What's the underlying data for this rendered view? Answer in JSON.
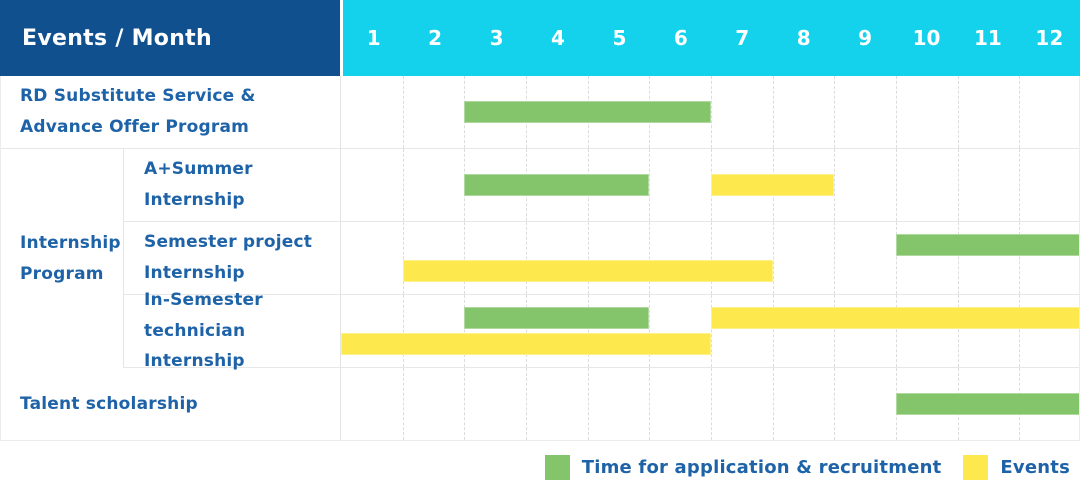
{
  "header": {
    "title": "Events / Month",
    "months": [
      "1",
      "2",
      "3",
      "4",
      "5",
      "6",
      "7",
      "8",
      "9",
      "10",
      "11",
      "12"
    ]
  },
  "colors": {
    "header_bg": "#11508f",
    "month_strip_bg": "#14d2ec",
    "recruitment_bar": "#84c56b",
    "event_bar": "#fde84e",
    "label_text": "#1e63a7"
  },
  "chart_data": {
    "type": "gantt",
    "title": "Events / Month",
    "x_axis": {
      "label": "Month",
      "ticks": [
        "1",
        "2",
        "3",
        "4",
        "5",
        "6",
        "7",
        "8",
        "9",
        "10",
        "11",
        "12"
      ],
      "range": [
        1,
        12
      ]
    },
    "grid": "vertical-dashed",
    "legend_position": "bottom-right",
    "series_legend": [
      {
        "name": "Time for application & recruitment",
        "color": "#84c56b"
      },
      {
        "name": "Events",
        "color": "#fde84e"
      }
    ],
    "rows": [
      {
        "group": null,
        "label": "RD Substitute Service &\nAdvance Offer Program",
        "bars": [
          {
            "series": "Time for application & recruitment",
            "type": "recruitment",
            "start_month": 3,
            "end_month": 6,
            "line": 0
          }
        ]
      },
      {
        "group": "Internship Program",
        "label": "A+Summer\nInternship",
        "bars": [
          {
            "series": "Time for application & recruitment",
            "type": "recruitment",
            "start_month": 3,
            "end_month": 5,
            "line": 0
          },
          {
            "series": "Events",
            "type": "event",
            "start_month": 7,
            "end_month": 8,
            "line": 0
          }
        ]
      },
      {
        "group": "Internship Program",
        "label": "Semester project\nInternship",
        "bars": [
          {
            "series": "Time for application & recruitment",
            "type": "recruitment",
            "start_month": 10,
            "end_month": 12,
            "line": 0
          },
          {
            "series": "Events",
            "type": "event",
            "start_month": 2,
            "end_month": 7,
            "line": 1
          }
        ]
      },
      {
        "group": "Internship Program",
        "label": "In-Semester\ntechnician Internship",
        "bars": [
          {
            "series": "Time for application & recruitment",
            "type": "recruitment",
            "start_month": 3,
            "end_month": 5,
            "line": 0
          },
          {
            "series": "Events",
            "type": "event",
            "start_month": 7,
            "end_month": 12,
            "line": 0
          },
          {
            "series": "Events",
            "type": "event",
            "start_month": 1,
            "end_month": 6,
            "line": 1
          }
        ]
      },
      {
        "group": null,
        "label": "Talent scholarship",
        "bars": [
          {
            "series": "Time for application & recruitment",
            "type": "recruitment",
            "start_month": 10,
            "end_month": 12,
            "line": 0
          }
        ]
      }
    ]
  },
  "legend": {
    "items": [
      {
        "label": "Time for application & recruitment",
        "color": "#84c56b"
      },
      {
        "label": "Events",
        "color": "#fde84e"
      }
    ]
  }
}
